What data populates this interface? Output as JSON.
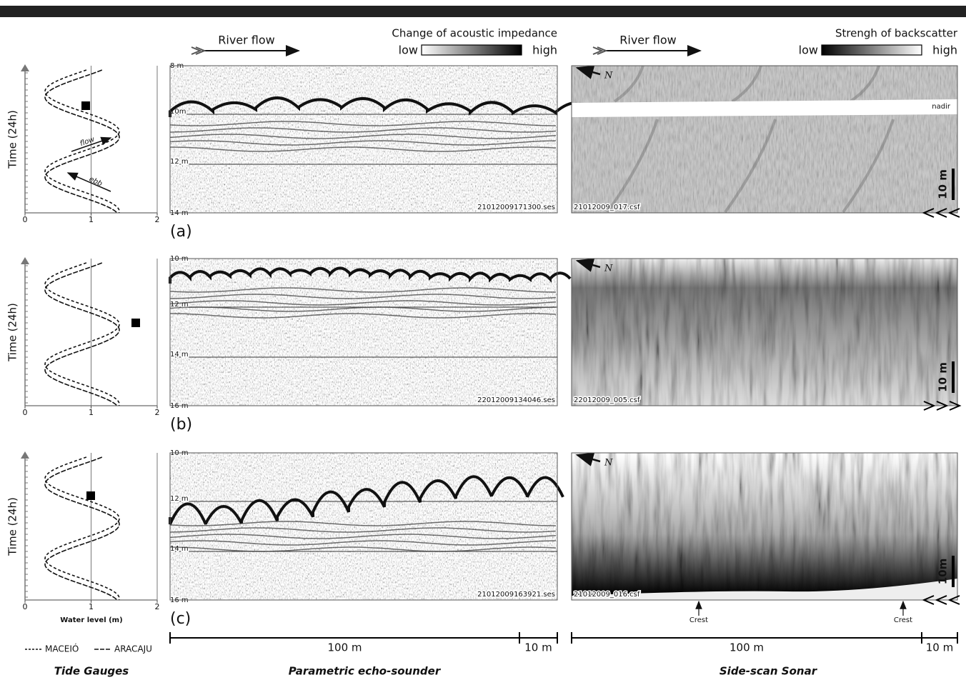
{
  "header": {
    "echo": {
      "flow": "River flow",
      "title": "Change of acoustic impedance",
      "low": "low",
      "high": "high"
    },
    "sonar": {
      "flow": "River flow",
      "title": "Strengh of backscatter",
      "low": "low",
      "high": "high"
    }
  },
  "rows": [
    {
      "label": "(a)",
      "tide": {
        "ylabel": "Time (24h)",
        "xticks": [
          0,
          1,
          2
        ],
        "flow": "flow",
        "ebb": "ebb"
      },
      "echo": {
        "depths": [
          "8 m",
          "10m",
          "12 m",
          "14 m"
        ],
        "file": "21012009171300.ses"
      },
      "sonar": {
        "north": "N",
        "file": "21012009_017.csf",
        "nadir": "nadir",
        "scale": "10 m"
      }
    },
    {
      "label": "(b)",
      "tide": {
        "ylabel": "Time (24h)",
        "xticks": [
          0,
          1,
          2
        ]
      },
      "echo": {
        "depths": [
          "10 m",
          "12 m",
          "14 m",
          "16 m"
        ],
        "file": "22012009134046.ses"
      },
      "sonar": {
        "north": "N",
        "file": "22012009_005.csf",
        "scale": "10 m"
      }
    },
    {
      "label": "(c)",
      "tide": {
        "ylabel": "Time (24h)",
        "xticks": [
          0,
          1,
          2
        ],
        "xlabel": "Water level (m)"
      },
      "echo": {
        "depths": [
          "10 m",
          "12 m",
          "14 m",
          "16 m"
        ],
        "file": "21012009163921.ses"
      },
      "sonar": {
        "north": "N",
        "file": "21012009_016.csf",
        "scale": "10m",
        "crest": [
          "Crest",
          "Crest"
        ]
      }
    }
  ],
  "legend": [
    "MACEIÓ",
    "ARACAJU"
  ],
  "scale": {
    "echo": [
      "100 m",
      "10 m"
    ],
    "sonar": [
      "100 m",
      "10 m"
    ]
  },
  "captions": [
    "Tide Gauges",
    "Parametric echo-sounder",
    "Side-scan Sonar"
  ]
}
